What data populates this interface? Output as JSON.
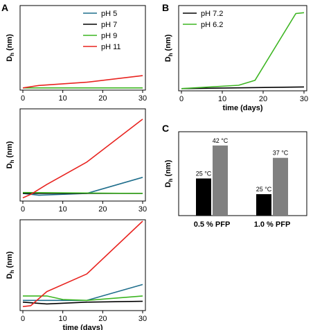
{
  "panels": {
    "A": "A",
    "B": "B",
    "C": "C"
  },
  "chart_data": [
    {
      "id": "A1",
      "type": "line",
      "ylabel_main": "D",
      "ylabel_sub": "h",
      "ylabel_unit": "(nm)",
      "xlabel": "",
      "x_ticks": [
        "0",
        "10",
        "20",
        "30"
      ],
      "xlim": [
        0,
        30
      ],
      "ylim": [
        0,
        100
      ],
      "legend": [
        {
          "name": "pH 5",
          "color": "#1f6e8c"
        },
        {
          "name": "pH 7",
          "color": "#000000"
        },
        {
          "name": "pH 9",
          "color": "#3cb521"
        },
        {
          "name": "pH 11",
          "color": "#e8231f"
        }
      ],
      "series": [
        {
          "name": "pH 9",
          "color": "#3cb521",
          "x": [
            0,
            30
          ],
          "y": [
            1,
            1
          ]
        },
        {
          "name": "pH 11",
          "color": "#e8231f",
          "x": [
            0,
            4,
            16,
            30
          ],
          "y": [
            1,
            4,
            8,
            16
          ]
        }
      ]
    },
    {
      "id": "A2",
      "type": "line",
      "ylabel_main": "D",
      "ylabel_sub": "h",
      "ylabel_unit": "(nm)",
      "xlabel": "",
      "x_ticks": [
        "0",
        "10",
        "20",
        "30"
      ],
      "xlim": [
        0,
        30
      ],
      "ylim": [
        0,
        100
      ],
      "series": [
        {
          "name": "pH 5",
          "color": "#1f6e8c",
          "x": [
            0,
            4,
            16,
            30
          ],
          "y": [
            7,
            5,
            7,
            25
          ]
        },
        {
          "name": "pH 7",
          "color": "#000000",
          "x": [
            0,
            30
          ],
          "y": [
            7,
            7
          ]
        },
        {
          "name": "pH 9",
          "color": "#3cb521",
          "x": [
            0,
            30
          ],
          "y": [
            8,
            7
          ]
        },
        {
          "name": "pH 11",
          "color": "#e8231f",
          "x": [
            0,
            2,
            6,
            16,
            30
          ],
          "y": [
            2,
            6,
            17,
            42,
            90
          ]
        }
      ]
    },
    {
      "id": "A3",
      "type": "line",
      "ylabel_main": "D",
      "ylabel_sub": "h",
      "ylabel_unit": "(nm)",
      "xlabel": "time (days)",
      "x_ticks": [
        "0",
        "10",
        "20",
        "30"
      ],
      "xlim": [
        0,
        30
      ],
      "ylim": [
        0,
        100
      ],
      "series": [
        {
          "name": "pH 5",
          "color": "#1f6e8c",
          "x": [
            0,
            6,
            16,
            30
          ],
          "y": [
            10,
            10,
            10,
            28
          ]
        },
        {
          "name": "pH 7",
          "color": "#000000",
          "x": [
            0,
            6,
            16,
            30
          ],
          "y": [
            8,
            6,
            8,
            9
          ]
        },
        {
          "name": "pH 9",
          "color": "#3cb521",
          "x": [
            0,
            6,
            10,
            16,
            30
          ],
          "y": [
            15,
            15,
            11,
            10,
            15
          ]
        },
        {
          "name": "pH 11",
          "color": "#e8231f",
          "x": [
            0,
            2,
            6,
            16,
            30
          ],
          "y": [
            3,
            4,
            20,
            40,
            100
          ]
        }
      ]
    },
    {
      "id": "B",
      "type": "line",
      "ylabel_main": "D",
      "ylabel_sub": "h",
      "ylabel_unit": "(nm)",
      "xlabel": "time (days)",
      "x_ticks": [
        "0",
        "10",
        "20",
        "30"
      ],
      "xlim": [
        0,
        30
      ],
      "ylim": [
        0,
        100
      ],
      "legend": [
        {
          "name": "pH 7.2",
          "color": "#000000"
        },
        {
          "name": "pH 6.2",
          "color": "#3cb521"
        }
      ],
      "series": [
        {
          "name": "pH 7.2",
          "color": "#000000",
          "x": [
            0,
            30
          ],
          "y": [
            1,
            3
          ]
        },
        {
          "name": "pH 6.2",
          "color": "#3cb521",
          "x": [
            0,
            14,
            18,
            28,
            30
          ],
          "y": [
            1,
            5,
            11,
            92,
            93
          ]
        }
      ]
    },
    {
      "id": "C",
      "type": "bar",
      "ylabel_main": "D",
      "ylabel_sub": "h",
      "ylabel_unit": "(nm)",
      "categories": [
        "0.5 % PFP",
        "1.0 % PFP"
      ],
      "ylim": [
        0,
        100
      ],
      "bars": [
        {
          "category": "0.5 % PFP",
          "label": "25 °C",
          "value": 45,
          "color": "#000000"
        },
        {
          "category": "0.5 % PFP",
          "label": "42 °C",
          "value": 85,
          "color": "#808080"
        },
        {
          "category": "1.0 % PFP",
          "label": "25 °C",
          "value": 26,
          "color": "#000000"
        },
        {
          "category": "1.0 % PFP",
          "label": "37 °C",
          "value": 70,
          "color": "#808080"
        }
      ]
    }
  ]
}
